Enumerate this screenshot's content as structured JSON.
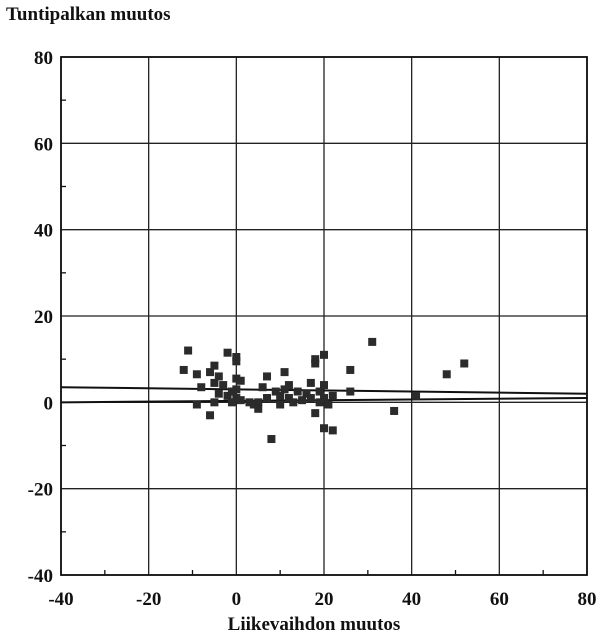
{
  "chart_data": {
    "type": "scatter",
    "title": "",
    "ylabel": "Tuntipalkan muutos",
    "xlabel": "Liikevaihdon muutos",
    "xlim": [
      -40,
      80
    ],
    "ylim": [
      -40,
      80
    ],
    "x_ticks": [
      "-40",
      "-20",
      "0",
      "20",
      "40",
      "60",
      "80"
    ],
    "y_ticks": [
      "80",
      "60",
      "40",
      "20",
      "0",
      "-20",
      "-40"
    ],
    "grid": true,
    "points": [
      {
        "x": -11,
        "y": 12
      },
      {
        "x": -12,
        "y": 7.5
      },
      {
        "x": -9,
        "y": 6.5
      },
      {
        "x": -8,
        "y": 3.5
      },
      {
        "x": -9,
        "y": -0.5
      },
      {
        "x": -6,
        "y": 7
      },
      {
        "x": -5,
        "y": 8.5
      },
      {
        "x": -5,
        "y": 4.5
      },
      {
        "x": -4,
        "y": 6
      },
      {
        "x": -4,
        "y": 2
      },
      {
        "x": -5,
        "y": 0
      },
      {
        "x": -6,
        "y": -3
      },
      {
        "x": -3,
        "y": 4
      },
      {
        "x": -2,
        "y": 11.5
      },
      {
        "x": -2,
        "y": 1.5
      },
      {
        "x": -1,
        "y": 0
      },
      {
        "x": 0,
        "y": 10.5
      },
      {
        "x": 0,
        "y": 9.5
      },
      {
        "x": 0,
        "y": 5.5
      },
      {
        "x": 0,
        "y": 3
      },
      {
        "x": 0,
        "y": 1
      },
      {
        "x": 1,
        "y": 0.5
      },
      {
        "x": 1,
        "y": 5
      },
      {
        "x": -1,
        "y": 2.5
      },
      {
        "x": 3,
        "y": 0
      },
      {
        "x": 4,
        "y": -0.5
      },
      {
        "x": 5,
        "y": 0
      },
      {
        "x": 5,
        "y": -1.5
      },
      {
        "x": 6,
        "y": 3.5
      },
      {
        "x": 7,
        "y": 6
      },
      {
        "x": 7,
        "y": 1
      },
      {
        "x": 8,
        "y": -8.5
      },
      {
        "x": 9,
        "y": 2.5
      },
      {
        "x": 10,
        "y": 1.5
      },
      {
        "x": 10,
        "y": -0.5
      },
      {
        "x": 11,
        "y": 3
      },
      {
        "x": 11,
        "y": 7
      },
      {
        "x": 12,
        "y": 1
      },
      {
        "x": 12,
        "y": 4
      },
      {
        "x": 13,
        "y": 0
      },
      {
        "x": 14,
        "y": 2.5
      },
      {
        "x": 15,
        "y": 0.5
      },
      {
        "x": 16,
        "y": 2
      },
      {
        "x": 17,
        "y": 1
      },
      {
        "x": 17,
        "y": 4.5
      },
      {
        "x": 18,
        "y": 9
      },
      {
        "x": 18,
        "y": 10
      },
      {
        "x": 18,
        "y": -2.5
      },
      {
        "x": 19,
        "y": 0
      },
      {
        "x": 19,
        "y": 2.5
      },
      {
        "x": 20,
        "y": 11
      },
      {
        "x": 20,
        "y": 4
      },
      {
        "x": 20,
        "y": 1
      },
      {
        "x": 20,
        "y": -6
      },
      {
        "x": 21,
        "y": -0.5
      },
      {
        "x": 22,
        "y": -6.5
      },
      {
        "x": 22,
        "y": 1.5
      },
      {
        "x": 26,
        "y": 7.5
      },
      {
        "x": 26,
        "y": 2.5
      },
      {
        "x": 31,
        "y": 14
      },
      {
        "x": 36,
        "y": -2
      },
      {
        "x": 41,
        "y": 1.5
      },
      {
        "x": 48,
        "y": 6.5
      },
      {
        "x": 52,
        "y": 9
      }
    ],
    "lines": [
      {
        "x": [
          -40,
          80
        ],
        "y": [
          3.5,
          2.0
        ]
      },
      {
        "x": [
          -40,
          80
        ],
        "y": [
          0,
          1.0
        ]
      }
    ]
  }
}
